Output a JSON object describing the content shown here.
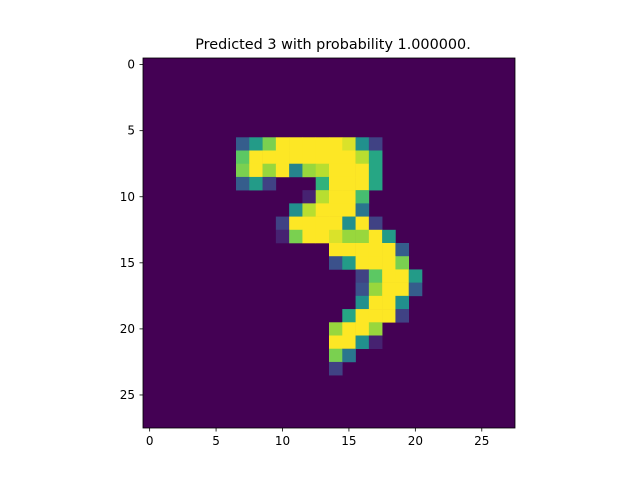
{
  "chart_data": {
    "type": "heatmap",
    "title": "Predicted 3 with probability 1.000000.",
    "xlabel": "",
    "ylabel": "",
    "xlim": [
      -0.5,
      27.5
    ],
    "ylim": [
      27.5,
      -0.5
    ],
    "x_ticks": [
      0,
      5,
      10,
      15,
      20,
      25
    ],
    "y_ticks": [
      0,
      5,
      10,
      15,
      20,
      25
    ],
    "x_tick_labels": [
      "0",
      "5",
      "10",
      "15",
      "20",
      "25"
    ],
    "y_tick_labels": [
      "0",
      "5",
      "10",
      "15",
      "20",
      "25"
    ],
    "colormap": "viridis",
    "grid": false,
    "background_color": "#440154",
    "nonzero_pixels": [
      {
        "row": 6,
        "col": 7,
        "v": 0.3
      },
      {
        "row": 6,
        "col": 8,
        "v": 0.55
      },
      {
        "row": 6,
        "col": 9,
        "v": 0.8
      },
      {
        "row": 6,
        "col": 10,
        "v": 1.0
      },
      {
        "row": 6,
        "col": 11,
        "v": 1.0
      },
      {
        "row": 6,
        "col": 12,
        "v": 1.0
      },
      {
        "row": 6,
        "col": 13,
        "v": 1.0
      },
      {
        "row": 6,
        "col": 14,
        "v": 1.0
      },
      {
        "row": 6,
        "col": 15,
        "v": 0.95
      },
      {
        "row": 6,
        "col": 16,
        "v": 0.5
      },
      {
        "row": 6,
        "col": 17,
        "v": 0.2
      },
      {
        "row": 7,
        "col": 7,
        "v": 0.75
      },
      {
        "row": 7,
        "col": 8,
        "v": 1.0
      },
      {
        "row": 7,
        "col": 9,
        "v": 1.0
      },
      {
        "row": 7,
        "col": 10,
        "v": 1.0
      },
      {
        "row": 7,
        "col": 11,
        "v": 1.0
      },
      {
        "row": 7,
        "col": 12,
        "v": 1.0
      },
      {
        "row": 7,
        "col": 13,
        "v": 1.0
      },
      {
        "row": 7,
        "col": 14,
        "v": 1.0
      },
      {
        "row": 7,
        "col": 15,
        "v": 1.0
      },
      {
        "row": 7,
        "col": 16,
        "v": 0.9
      },
      {
        "row": 7,
        "col": 17,
        "v": 0.6
      },
      {
        "row": 8,
        "col": 7,
        "v": 0.8
      },
      {
        "row": 8,
        "col": 8,
        "v": 1.0
      },
      {
        "row": 8,
        "col": 9,
        "v": 0.85
      },
      {
        "row": 8,
        "col": 10,
        "v": 1.0
      },
      {
        "row": 8,
        "col": 11,
        "v": 0.45
      },
      {
        "row": 8,
        "col": 12,
        "v": 0.85
      },
      {
        "row": 8,
        "col": 13,
        "v": 0.9
      },
      {
        "row": 8,
        "col": 14,
        "v": 1.0
      },
      {
        "row": 8,
        "col": 15,
        "v": 1.0
      },
      {
        "row": 8,
        "col": 16,
        "v": 1.0
      },
      {
        "row": 8,
        "col": 17,
        "v": 0.6
      },
      {
        "row": 9,
        "col": 7,
        "v": 0.3
      },
      {
        "row": 9,
        "col": 8,
        "v": 0.55
      },
      {
        "row": 9,
        "col": 9,
        "v": 0.2
      },
      {
        "row": 9,
        "col": 13,
        "v": 0.65
      },
      {
        "row": 9,
        "col": 14,
        "v": 1.0
      },
      {
        "row": 9,
        "col": 15,
        "v": 1.0
      },
      {
        "row": 9,
        "col": 16,
        "v": 1.0
      },
      {
        "row": 9,
        "col": 17,
        "v": 0.6
      },
      {
        "row": 10,
        "col": 12,
        "v": 0.1
      },
      {
        "row": 10,
        "col": 13,
        "v": 0.9
      },
      {
        "row": 10,
        "col": 14,
        "v": 1.0
      },
      {
        "row": 10,
        "col": 15,
        "v": 1.0
      },
      {
        "row": 10,
        "col": 16,
        "v": 0.7
      },
      {
        "row": 11,
        "col": 11,
        "v": 0.5
      },
      {
        "row": 11,
        "col": 12,
        "v": 0.9
      },
      {
        "row": 11,
        "col": 13,
        "v": 1.0
      },
      {
        "row": 11,
        "col": 14,
        "v": 1.0
      },
      {
        "row": 11,
        "col": 15,
        "v": 1.0
      },
      {
        "row": 11,
        "col": 16,
        "v": 0.4
      },
      {
        "row": 12,
        "col": 10,
        "v": 0.2
      },
      {
        "row": 12,
        "col": 11,
        "v": 1.0
      },
      {
        "row": 12,
        "col": 12,
        "v": 1.0
      },
      {
        "row": 12,
        "col": 13,
        "v": 1.0
      },
      {
        "row": 12,
        "col": 14,
        "v": 1.0
      },
      {
        "row": 12,
        "col": 15,
        "v": 0.5
      },
      {
        "row": 12,
        "col": 16,
        "v": 1.0
      },
      {
        "row": 12,
        "col": 17,
        "v": 0.2
      },
      {
        "row": 13,
        "col": 10,
        "v": 0.1
      },
      {
        "row": 13,
        "col": 11,
        "v": 0.8
      },
      {
        "row": 13,
        "col": 12,
        "v": 1.0
      },
      {
        "row": 13,
        "col": 13,
        "v": 1.0
      },
      {
        "row": 13,
        "col": 14,
        "v": 0.95
      },
      {
        "row": 13,
        "col": 15,
        "v": 0.85
      },
      {
        "row": 13,
        "col": 16,
        "v": 0.85
      },
      {
        "row": 13,
        "col": 17,
        "v": 1.0
      },
      {
        "row": 13,
        "col": 18,
        "v": 0.55
      },
      {
        "row": 14,
        "col": 14,
        "v": 1.0
      },
      {
        "row": 14,
        "col": 15,
        "v": 1.0
      },
      {
        "row": 14,
        "col": 16,
        "v": 1.0
      },
      {
        "row": 14,
        "col": 17,
        "v": 1.0
      },
      {
        "row": 14,
        "col": 18,
        "v": 1.0
      },
      {
        "row": 14,
        "col": 19,
        "v": 0.3
      },
      {
        "row": 15,
        "col": 14,
        "v": 0.25
      },
      {
        "row": 15,
        "col": 15,
        "v": 0.55
      },
      {
        "row": 15,
        "col": 16,
        "v": 1.0
      },
      {
        "row": 15,
        "col": 17,
        "v": 1.0
      },
      {
        "row": 15,
        "col": 18,
        "v": 1.0
      },
      {
        "row": 15,
        "col": 19,
        "v": 0.8
      },
      {
        "row": 16,
        "col": 16,
        "v": 0.2
      },
      {
        "row": 16,
        "col": 17,
        "v": 0.75
      },
      {
        "row": 16,
        "col": 18,
        "v": 1.0
      },
      {
        "row": 16,
        "col": 19,
        "v": 1.0
      },
      {
        "row": 16,
        "col": 20,
        "v": 0.55
      },
      {
        "row": 17,
        "col": 16,
        "v": 0.25
      },
      {
        "row": 17,
        "col": 17,
        "v": 0.85
      },
      {
        "row": 17,
        "col": 18,
        "v": 1.0
      },
      {
        "row": 17,
        "col": 19,
        "v": 1.0
      },
      {
        "row": 17,
        "col": 20,
        "v": 0.3
      },
      {
        "row": 18,
        "col": 16,
        "v": 0.5
      },
      {
        "row": 18,
        "col": 17,
        "v": 1.0
      },
      {
        "row": 18,
        "col": 18,
        "v": 1.0
      },
      {
        "row": 18,
        "col": 19,
        "v": 0.5
      },
      {
        "row": 19,
        "col": 15,
        "v": 0.6
      },
      {
        "row": 19,
        "col": 16,
        "v": 1.0
      },
      {
        "row": 19,
        "col": 17,
        "v": 1.0
      },
      {
        "row": 19,
        "col": 18,
        "v": 1.0
      },
      {
        "row": 19,
        "col": 19,
        "v": 0.2
      },
      {
        "row": 20,
        "col": 14,
        "v": 0.85
      },
      {
        "row": 20,
        "col": 15,
        "v": 1.0
      },
      {
        "row": 20,
        "col": 16,
        "v": 1.0
      },
      {
        "row": 20,
        "col": 17,
        "v": 0.85
      },
      {
        "row": 21,
        "col": 14,
        "v": 1.0
      },
      {
        "row": 21,
        "col": 15,
        "v": 1.0
      },
      {
        "row": 21,
        "col": 16,
        "v": 0.5
      },
      {
        "row": 21,
        "col": 17,
        "v": 0.1
      },
      {
        "row": 22,
        "col": 14,
        "v": 0.8
      },
      {
        "row": 22,
        "col": 15,
        "v": 0.4
      },
      {
        "row": 23,
        "col": 14,
        "v": 0.2
      }
    ]
  }
}
